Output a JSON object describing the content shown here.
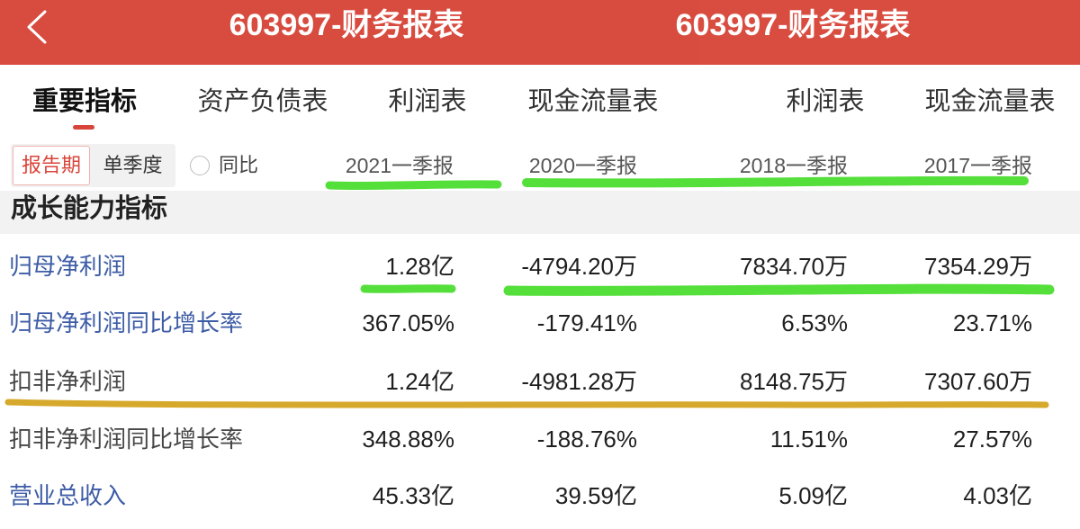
{
  "header": {
    "back_icon": "chevron-left-icon",
    "titles": [
      "603997-财务报表",
      "603997-财务报表"
    ],
    "bg_color": "#d84b3f"
  },
  "tabs": [
    {
      "label": "重要指标",
      "active": true
    },
    {
      "label": "资产负债表",
      "active": false
    },
    {
      "label": "利润表",
      "active": false
    },
    {
      "label": "现金流量表",
      "active": false
    },
    {
      "label": "利润表",
      "active": false
    },
    {
      "label": "现金流量表",
      "active": false
    }
  ],
  "filter": {
    "period_options": [
      {
        "label": "报告期",
        "selected": true
      },
      {
        "label": "单季度",
        "selected": false
      }
    ],
    "yoy": {
      "label": "同比",
      "checked": false
    }
  },
  "columns": [
    "2021一季报",
    "2020一季报",
    "2018一季报",
    "2017一季报"
  ],
  "section": {
    "title": "成长能力指标",
    "rows": [
      {
        "label": "归母净利润",
        "label_color": "#3d5ca6",
        "values": [
          "1.28亿",
          "-4794.20万",
          "7834.70万",
          "7354.29万"
        ]
      },
      {
        "label": "归母净利润同比增长率",
        "label_color": "#3d5ca6",
        "values": [
          "367.05%",
          "-179.41%",
          "6.53%",
          "23.71%"
        ]
      },
      {
        "label": "扣非净利润",
        "label_color": "#474747",
        "values": [
          "1.24亿",
          "-4981.28万",
          "8148.75万",
          "7307.60万"
        ]
      },
      {
        "label": "扣非净利润同比增长率",
        "label_color": "#474747",
        "values": [
          "348.88%",
          "-188.76%",
          "11.51%",
          "27.57%"
        ]
      },
      {
        "label": "营业总收入",
        "label_color": "#3d5ca6",
        "values": [
          "45.33亿",
          "39.59亿",
          "5.09亿",
          "4.03亿"
        ]
      }
    ]
  },
  "colors": {
    "accent": "#d8453a",
    "link": "#3d5ca6",
    "label": "#474747",
    "value": "#1f1f1f",
    "section_bg": "#f2f2f2"
  },
  "annotations": {
    "green_marker": "#55df3b",
    "gold_marker": "#d6a92c"
  }
}
